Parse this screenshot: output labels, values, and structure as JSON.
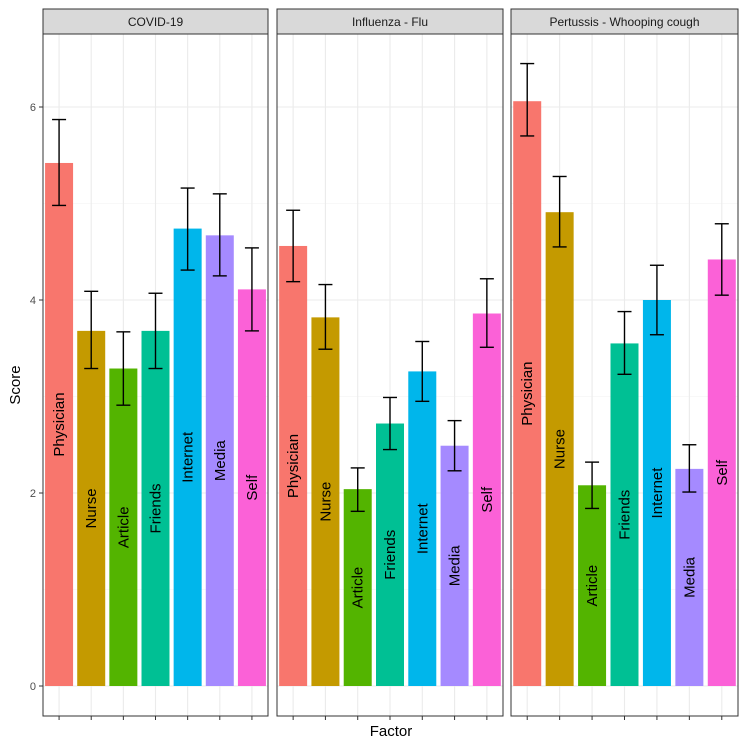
{
  "chart_data": {
    "type": "bar",
    "xlabel": "Factor",
    "ylabel": "Score",
    "ylim": [
      0,
      6.8
    ],
    "y_ticks": [
      "0",
      "2",
      "4",
      "6"
    ],
    "grid": true,
    "categories": [
      "Physician",
      "Nurse",
      "Article",
      "Friends",
      "Internet",
      "Media",
      "Self"
    ],
    "colors": [
      "#F8766D",
      "#C49A00",
      "#53B400",
      "#00C094",
      "#00B6EB",
      "#A58AFF",
      "#FB61D7"
    ],
    "panels": [
      {
        "title": "COVID-19",
        "values": [
          5.42,
          3.68,
          3.29,
          3.68,
          4.74,
          4.67,
          4.11
        ],
        "err_low": [
          4.98,
          3.29,
          2.91,
          3.29,
          4.31,
          4.25,
          3.68
        ],
        "err_high": [
          5.87,
          4.09,
          3.67,
          4.07,
          5.16,
          5.1,
          4.54
        ]
      },
      {
        "title": "Influenza - Flu",
        "values": [
          4.56,
          3.82,
          2.04,
          2.72,
          3.26,
          2.49,
          3.86
        ],
        "err_low": [
          4.19,
          3.49,
          1.81,
          2.45,
          2.95,
          2.23,
          3.51
        ],
        "err_high": [
          4.93,
          4.16,
          2.26,
          2.99,
          3.57,
          2.75,
          4.22
        ]
      },
      {
        "title": "Pertussis - Whooping cough",
        "values": [
          6.06,
          4.91,
          2.08,
          3.55,
          4.0,
          2.25,
          4.42
        ],
        "err_low": [
          5.7,
          4.55,
          1.84,
          3.23,
          3.64,
          2.01,
          4.05
        ],
        "err_high": [
          6.45,
          5.28,
          2.32,
          3.88,
          4.36,
          2.5,
          4.79
        ]
      }
    ]
  }
}
